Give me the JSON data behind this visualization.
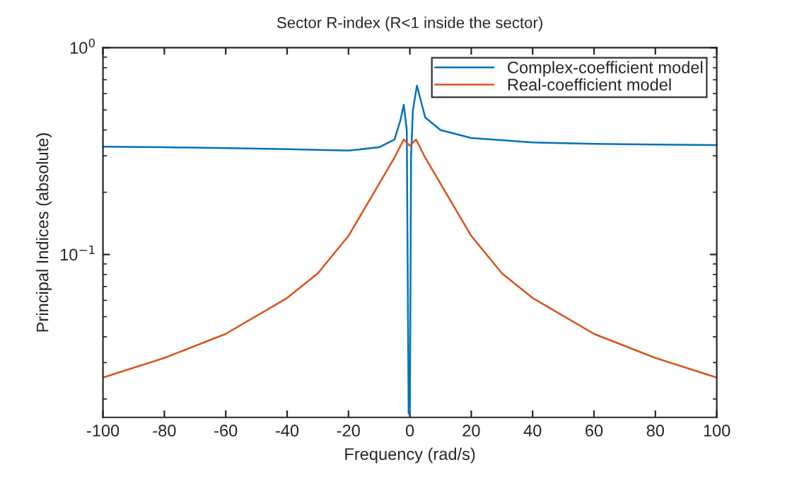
{
  "chart_data": {
    "type": "line",
    "title": "Sector R-index (R<1 inside the sector)",
    "xlabel": "Frequency (rad/s)",
    "ylabel": "Principal Indices (absolute)",
    "log": "y",
    "grid": false,
    "legend": "top right",
    "xlim": [
      -100,
      100
    ],
    "xticks": [
      -100,
      -80,
      -60,
      -40,
      -20,
      0,
      20,
      40,
      60,
      80,
      100
    ],
    "ylim": [
      0.0163,
      1
    ],
    "yticks": [
      {
        "value": 1,
        "label": "10$^{0}$"
      },
      {
        "value": 0.1,
        "label": "10$^{−1}$"
      }
    ],
    "series": [
      {
        "name": "Complex-coefficient model",
        "color": "#0072bd",
        "x": [
          -100,
          -80,
          -60,
          -40,
          -20,
          -10,
          -5,
          -3,
          -2,
          -1,
          -0.4,
          0,
          0.4,
          1,
          2.3,
          3.5,
          5,
          10,
          20,
          40,
          60,
          80,
          100
        ],
        "values": [
          0.332,
          0.33,
          0.327,
          0.323,
          0.318,
          0.33,
          0.36,
          0.45,
          0.53,
          0.4,
          0.017,
          0.017,
          0.3,
          0.5,
          0.656,
          0.56,
          0.46,
          0.4,
          0.366,
          0.348,
          0.343,
          0.34,
          0.338
        ]
      },
      {
        "name": "Real-coefficient model",
        "color": "#d95319",
        "x": [
          -100,
          -80,
          -60,
          -40,
          -30,
          -20,
          -10,
          -5,
          -2,
          0,
          2,
          5,
          10,
          20,
          30,
          40,
          60,
          80,
          100
        ],
        "values": [
          0.0254,
          0.0316,
          0.0413,
          0.0616,
          0.081,
          0.123,
          0.22,
          0.294,
          0.36,
          0.336,
          0.36,
          0.294,
          0.22,
          0.123,
          0.081,
          0.0616,
          0.0413,
          0.0316,
          0.0254
        ]
      }
    ]
  }
}
